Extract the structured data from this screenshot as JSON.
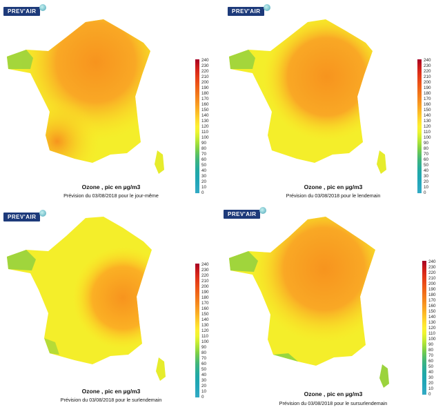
{
  "logo_text": "PREV'AIR",
  "title": "Ozone , pic en µg/m3",
  "scale_values": [
    "240",
    "230",
    "220",
    "210",
    "200",
    "190",
    "180",
    "170",
    "160",
    "150",
    "140",
    "130",
    "120",
    "110",
    "100",
    "90",
    "80",
    "70",
    "60",
    "50",
    "40",
    "30",
    "20",
    "10",
    "0"
  ],
  "scale_colors": [
    "#a50026",
    "#c2161b",
    "#d7261a",
    "#e33a18",
    "#ea4c18",
    "#ef6017",
    "#f1731a",
    "#f5861d",
    "#f89a22",
    "#fbb024",
    "#fdc72a",
    "#fedd2e",
    "#fdf032",
    "#eef431",
    "#cdee33",
    "#a6e03a",
    "#7fd046",
    "#5cc262",
    "#40b57c",
    "#2faf92",
    "#22a9a4",
    "#1fa7b0",
    "#22a6b8",
    "#2aa8bf",
    "#33aac4"
  ],
  "panels": [
    {
      "subtitle": "Prévision du 03/08/2018 pour le jour-même",
      "intensity": "high-east"
    },
    {
      "subtitle": "Prévision du 03/08/2018 pour le lendemain",
      "intensity": "high-east"
    },
    {
      "subtitle": "Prévision du 03/08/2018 pour le surlendemain",
      "intensity": "moderate"
    },
    {
      "subtitle": "Prévision du 03/08/2018 pour le sursurlendemain",
      "intensity": "high-north-east"
    }
  ]
}
